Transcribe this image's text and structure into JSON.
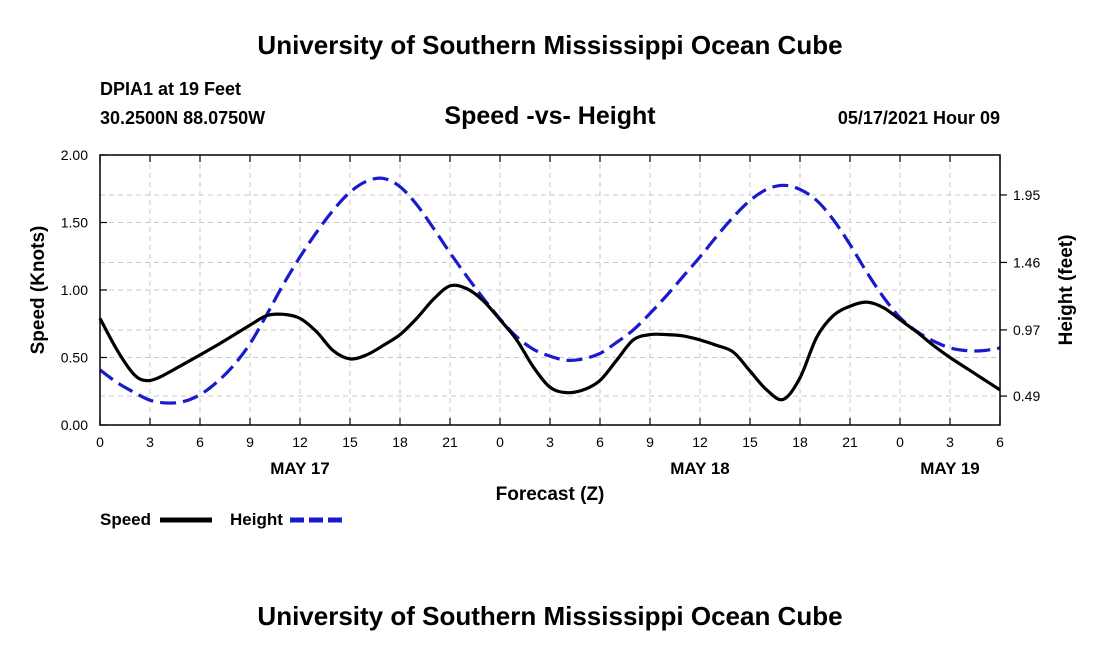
{
  "header": {
    "title": "University of Southern Mississippi Ocean Cube",
    "station": "DPIA1 at 19 Feet",
    "coordinates": "30.2500N  88.0750W",
    "datetime": "05/17/2021 Hour 09"
  },
  "footer": {
    "title": "University of Southern Mississippi Ocean Cube"
  },
  "chart_data": {
    "type": "line",
    "title": "Speed -vs- Height",
    "xlabel": "Forecast (Z)",
    "ylabel": "Speed (Knots)",
    "y2label": "Height (feet)",
    "grid": true,
    "xlim": [
      0,
      54
    ],
    "ylim": [
      0,
      2.0
    ],
    "y2lim": [
      0.28,
      2.24
    ],
    "x_ticks": [
      0,
      3,
      6,
      9,
      12,
      15,
      18,
      21,
      24,
      27,
      30,
      33,
      36,
      39,
      42,
      45,
      48,
      51,
      54
    ],
    "x_tick_labels": [
      "0",
      "3",
      "6",
      "9",
      "12",
      "15",
      "18",
      "21",
      "0",
      "3",
      "6",
      "9",
      "12",
      "15",
      "18",
      "21",
      "0",
      "3",
      "6"
    ],
    "y_ticks": [
      0,
      0.5,
      1.0,
      1.5,
      2.0
    ],
    "y_tick_labels": [
      "0.00",
      "0.50",
      "1.00",
      "1.50",
      "2.00"
    ],
    "y2_ticks": [
      0.49,
      0.97,
      1.46,
      1.95
    ],
    "y2_tick_labels": [
      "0.49",
      "0.97",
      "1.46",
      "1.95"
    ],
    "date_labels": [
      {
        "x": 12,
        "label": "MAY 17"
      },
      {
        "x": 36,
        "label": "MAY 18"
      },
      {
        "x": 51,
        "label": "MAY 19"
      }
    ],
    "series": [
      {
        "name": "Speed",
        "axis": "left",
        "color": "#000000",
        "style": "solid",
        "points": [
          [
            0,
            0.79
          ],
          [
            1,
            0.56
          ],
          [
            2,
            0.38
          ],
          [
            2.7,
            0.33
          ],
          [
            3.5,
            0.35
          ],
          [
            5,
            0.45
          ],
          [
            7,
            0.59
          ],
          [
            9,
            0.74
          ],
          [
            10,
            0.81
          ],
          [
            11,
            0.82
          ],
          [
            12,
            0.79
          ],
          [
            13,
            0.69
          ],
          [
            14,
            0.55
          ],
          [
            15,
            0.49
          ],
          [
            16,
            0.52
          ],
          [
            17,
            0.59
          ],
          [
            18,
            0.67
          ],
          [
            19,
            0.79
          ],
          [
            20,
            0.93
          ],
          [
            21,
            1.03
          ],
          [
            22,
            1.01
          ],
          [
            23,
            0.92
          ],
          [
            24,
            0.78
          ],
          [
            25,
            0.63
          ],
          [
            26,
            0.43
          ],
          [
            27,
            0.28
          ],
          [
            28,
            0.24
          ],
          [
            29,
            0.26
          ],
          [
            30,
            0.33
          ],
          [
            31,
            0.48
          ],
          [
            32,
            0.63
          ],
          [
            33,
            0.67
          ],
          [
            34,
            0.67
          ],
          [
            35,
            0.66
          ],
          [
            36,
            0.63
          ],
          [
            37,
            0.59
          ],
          [
            38,
            0.54
          ],
          [
            39,
            0.4
          ],
          [
            40,
            0.26
          ],
          [
            41,
            0.19
          ],
          [
            42,
            0.35
          ],
          [
            43,
            0.65
          ],
          [
            44,
            0.81
          ],
          [
            45,
            0.88
          ],
          [
            46,
            0.91
          ],
          [
            47,
            0.87
          ],
          [
            48,
            0.78
          ],
          [
            49,
            0.69
          ],
          [
            50,
            0.59
          ],
          [
            51,
            0.5
          ],
          [
            52,
            0.42
          ],
          [
            53,
            0.34
          ],
          [
            54,
            0.26
          ]
        ]
      },
      {
        "name": "Height",
        "axis": "right",
        "color": "#1a1acd",
        "style": "dashed",
        "points": [
          [
            0,
            0.68
          ],
          [
            1,
            0.59
          ],
          [
            2,
            0.52
          ],
          [
            3,
            0.46
          ],
          [
            4,
            0.44
          ],
          [
            5,
            0.45
          ],
          [
            6,
            0.5
          ],
          [
            7,
            0.59
          ],
          [
            8,
            0.71
          ],
          [
            9,
            0.87
          ],
          [
            10,
            1.08
          ],
          [
            11,
            1.3
          ],
          [
            12,
            1.5
          ],
          [
            13,
            1.68
          ],
          [
            14,
            1.84
          ],
          [
            15,
            1.97
          ],
          [
            16,
            2.05
          ],
          [
            17,
            2.07
          ],
          [
            18,
            2.01
          ],
          [
            19,
            1.88
          ],
          [
            20,
            1.71
          ],
          [
            21,
            1.53
          ],
          [
            22,
            1.36
          ],
          [
            23,
            1.2
          ],
          [
            24,
            1.05
          ],
          [
            25,
            0.92
          ],
          [
            26,
            0.83
          ],
          [
            27,
            0.78
          ],
          [
            28,
            0.75
          ],
          [
            29,
            0.76
          ],
          [
            30,
            0.8
          ],
          [
            31,
            0.88
          ],
          [
            32,
            0.97
          ],
          [
            33,
            1.09
          ],
          [
            34,
            1.22
          ],
          [
            35,
            1.36
          ],
          [
            36,
            1.5
          ],
          [
            37,
            1.65
          ],
          [
            38,
            1.79
          ],
          [
            39,
            1.91
          ],
          [
            40,
            1.99
          ],
          [
            41,
            2.02
          ],
          [
            42,
            1.99
          ],
          [
            43,
            1.91
          ],
          [
            44,
            1.77
          ],
          [
            45,
            1.59
          ],
          [
            46,
            1.39
          ],
          [
            47,
            1.21
          ],
          [
            48,
            1.06
          ],
          [
            49,
            0.96
          ],
          [
            50,
            0.89
          ],
          [
            51,
            0.84
          ],
          [
            52,
            0.82
          ],
          [
            53,
            0.82
          ],
          [
            54,
            0.84
          ]
        ]
      }
    ],
    "legend": [
      {
        "label": "Speed",
        "color": "#000000",
        "style": "solid"
      },
      {
        "label": "Height",
        "color": "#1a1acd",
        "style": "dashed"
      }
    ],
    "legend_position": "bottom-left"
  }
}
